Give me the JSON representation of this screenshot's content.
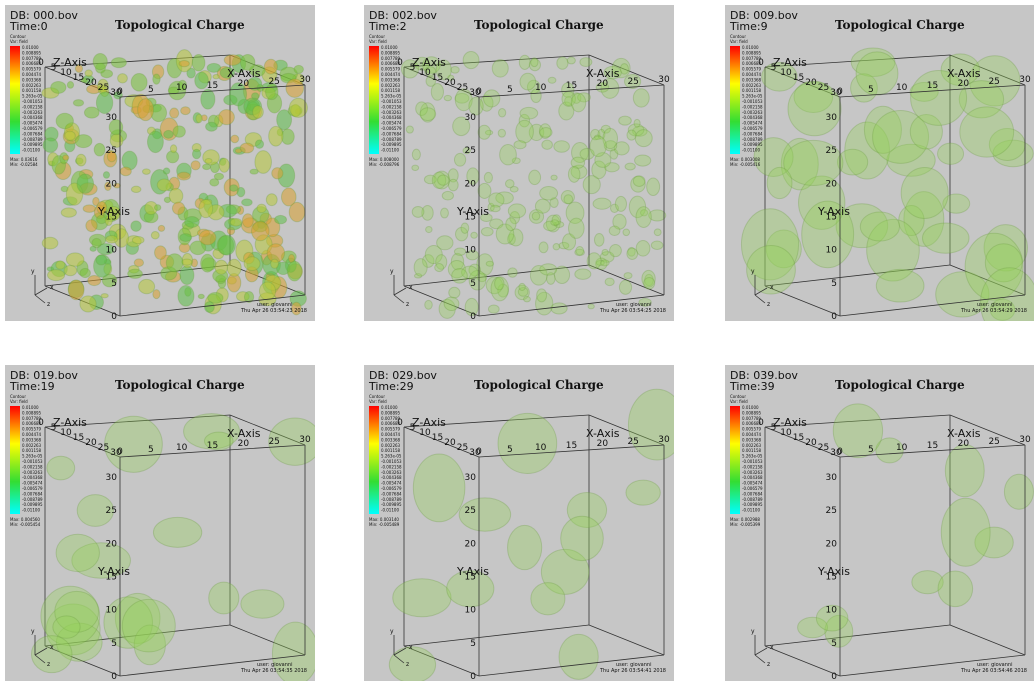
{
  "figure": {
    "title": "Topological Charge",
    "legend": {
      "heading": "Contour",
      "variable": "Var: field",
      "labels": [
        "0.01000",
        "0.008895",
        "0.007789",
        "0.006684",
        "0.005579",
        "0.004474",
        "0.003368",
        "0.002263",
        "0.001158",
        "5.263e-05",
        "-0.001053",
        "-0.002158",
        "-0.003263",
        "-0.004368",
        "-0.005474",
        "-0.006579",
        "-0.007684",
        "-0.008789",
        "-0.009895",
        "-0.01100"
      ]
    },
    "axes": {
      "x_label": "X-Axis",
      "y_label": "Y-Axis",
      "z_label": "Z-Axis",
      "ticks": [
        "0",
        "5",
        "10",
        "15",
        "20",
        "25",
        "30"
      ],
      "triad": [
        "x",
        "y",
        "z"
      ]
    },
    "user": "user: giovanni",
    "panels": [
      {
        "db": "DB: 000.bov",
        "time": "Time:0",
        "max": "Max: 0.03616",
        "min": "Min: -0.02584",
        "date": "Thu Apr 26 03:54:23 2018"
      },
      {
        "db": "DB: 002.bov",
        "time": "Time:2",
        "max": "Max: 0.008000",
        "min": "Min: -0.008796",
        "date": "Thu Apr 26 03:54:25 2018"
      },
      {
        "db": "DB: 009.bov",
        "time": "Time:9",
        "max": "Max: 0.003008",
        "min": "Min: -0.005416",
        "date": "Thu Apr 26 03:54:29 2018"
      },
      {
        "db": "DB: 019.bov",
        "time": "Time:19",
        "max": "Max: 0.004560",
        "min": "Min: -0.005454",
        "date": "Thu Apr 26 03:54:35 2018"
      },
      {
        "db": "DB: 029.bov",
        "time": "Time:29",
        "max": "Max: 0.003140",
        "min": "Min: -0.005489",
        "date": "Thu Apr 26 03:54:41 2018"
      },
      {
        "db": "DB: 039.bov",
        "time": "Time:39",
        "max": "Max: 0.002988",
        "min": "Min: -0.005399",
        "date": "Thu Apr 26 03:54:46 2018"
      }
    ]
  }
}
